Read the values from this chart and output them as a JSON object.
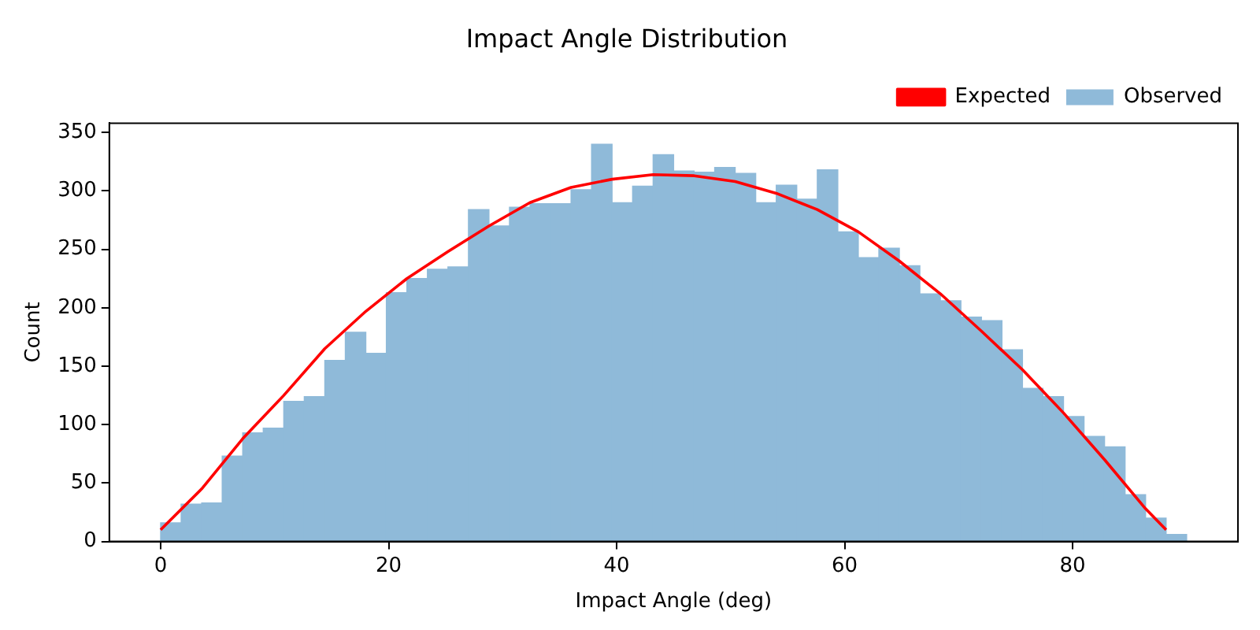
{
  "chart_data": {
    "type": "histogram",
    "title": "Impact Angle Distribution",
    "xlabel": "Impact Angle (deg)",
    "ylabel": "Count",
    "bins": [
      0,
      1.8,
      3.6,
      5.4,
      7.2,
      9,
      10.8,
      12.6,
      14.4,
      16.2,
      18,
      19.8,
      21.6,
      23.4,
      25.2,
      27,
      28.8,
      30.6,
      32.4,
      34.2,
      36,
      37.8,
      39.6,
      41.4,
      43.2,
      45,
      46.8,
      48.6,
      50.4,
      52.2,
      54,
      55.8,
      57.6,
      59.4,
      61.2,
      63,
      64.8,
      66.6,
      68.4,
      70.2,
      72,
      73.8,
      75.6,
      77.4,
      79.2,
      81,
      82.8,
      84.6,
      86.4,
      88.2,
      90
    ],
    "series": [
      {
        "name": "Expected",
        "type": "line",
        "color": "#ff0000",
        "x": [
          0,
          3.6,
          7.2,
          10.8,
          14.4,
          18,
          21.6,
          25.2,
          28.8,
          32.4,
          36,
          39.6,
          43.2,
          46.8,
          50.4,
          54,
          57.6,
          61.2,
          64.8,
          68.4,
          72,
          75.6,
          79.2,
          82.8,
          86.4,
          88.2
        ],
        "values": [
          10,
          45,
          88,
          125,
          165,
          197,
          225,
          248,
          270,
          290,
          303,
          310,
          314,
          313,
          308,
          298,
          284,
          265,
          240,
          212,
          180,
          147,
          110,
          70,
          28,
          10
        ]
      },
      {
        "name": "Observed",
        "color": "#8fbad9",
        "values": [
          16,
          32,
          33,
          73,
          93,
          97,
          120,
          124,
          155,
          179,
          161,
          213,
          225,
          233,
          235,
          284,
          270,
          286,
          289,
          289,
          301,
          340,
          290,
          304,
          331,
          317,
          316,
          320,
          315,
          290,
          305,
          293,
          318,
          265,
          243,
          251,
          236,
          212,
          206,
          192,
          189,
          164,
          131,
          124,
          107,
          90,
          81,
          40,
          20,
          6
        ]
      }
    ],
    "xlim": [
      -4.5,
      94.5
    ],
    "xticks": [
      0,
      20,
      40,
      60,
      80
    ],
    "ylim": [
      0,
      358
    ],
    "yticks": [
      0,
      50,
      100,
      150,
      200,
      250,
      300,
      350
    ],
    "grid": false,
    "legend": "top right"
  }
}
